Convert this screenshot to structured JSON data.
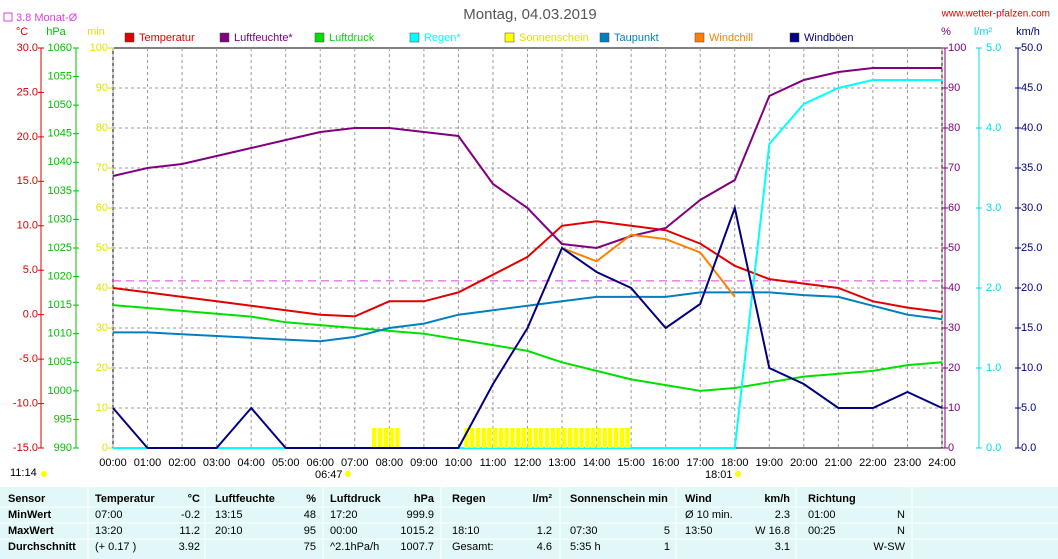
{
  "chart_data": {
    "type": "line",
    "title": "Montag, 04.03.2019",
    "site": "www.wetter-pfalzen.com",
    "reference": {
      "label": "3.8 Monat-Ø",
      "value": 3.8,
      "axis": 0,
      "color": "#e040e0"
    },
    "time": "11:14",
    "sunrise": "06:47",
    "sunset": "18:01",
    "axes": [
      {
        "unit": "°C",
        "color": "#e00000",
        "side": "left",
        "lim": [
          -15,
          30
        ],
        "ticks": [
          {
            "value": 30,
            "label": "30.0"
          },
          {
            "value": 25,
            "label": "25.0"
          },
          {
            "value": 20,
            "label": "20.0"
          },
          {
            "value": 15,
            "label": "15.0"
          },
          {
            "value": 10,
            "label": "10.0"
          },
          {
            "value": 5,
            "label": "5.0"
          },
          {
            "value": 0,
            "label": "0.0"
          },
          {
            "value": -5,
            "label": "-5.0"
          },
          {
            "value": -10,
            "label": "-10.0"
          },
          {
            "value": -15,
            "label": "-15.0"
          }
        ]
      },
      {
        "unit": "hPa",
        "color": "#00c000",
        "side": "left",
        "lim": [
          990,
          1060
        ],
        "ticks": [
          1060,
          1055,
          1050,
          1045,
          1040,
          1035,
          1030,
          1025,
          1020,
          1015,
          1010,
          1005,
          1000,
          995,
          990
        ]
      },
      {
        "unit": "min",
        "color": "#e0e000",
        "side": "left",
        "lim": [
          0,
          100
        ],
        "ticks": [
          100,
          90,
          80,
          70,
          60,
          50,
          40,
          30,
          20,
          10,
          0
        ],
        "grid": true
      },
      {
        "unit": "%",
        "color": "#800080",
        "side": "right",
        "lim": [
          0,
          100
        ],
        "ticks": [
          100,
          90,
          80,
          70,
          60,
          50,
          40,
          30,
          20,
          10,
          0
        ]
      },
      {
        "unit": "l/m²",
        "color": "#00e0e0",
        "side": "right",
        "lim": [
          0,
          5
        ],
        "ticks": [
          {
            "value": 5,
            "label": "5.0"
          },
          {
            "value": 4,
            "label": "4.0"
          },
          {
            "value": 3,
            "label": "3.0"
          },
          {
            "value": 2,
            "label": "2.0"
          },
          {
            "value": 1,
            "label": "1.0"
          },
          {
            "value": 0,
            "label": "0.0"
          }
        ]
      },
      {
        "unit": "km/h",
        "color": "#000080",
        "side": "right",
        "lim": [
          0,
          50
        ],
        "ticks": [
          {
            "value": 50,
            "label": "50.0"
          },
          {
            "value": 45,
            "label": "45.0"
          },
          {
            "value": 40,
            "label": "40.0"
          },
          {
            "value": 35,
            "label": "35.0"
          },
          {
            "value": 30,
            "label": "30.0"
          },
          {
            "value": 25,
            "label": "25.0"
          },
          {
            "value": 20,
            "label": "20.0"
          },
          {
            "value": 15,
            "label": "15.0"
          },
          {
            "value": 10,
            "label": "10.0"
          },
          {
            "value": 5,
            "label": "5.0"
          },
          {
            "value": 0,
            "label": "0.0"
          }
        ]
      }
    ],
    "xlim": [
      0,
      24
    ],
    "xticks": [
      {
        "value": 0,
        "label": "00:00"
      },
      {
        "value": 1,
        "label": "01:00"
      },
      {
        "value": 2,
        "label": "02:00"
      },
      {
        "value": 3,
        "label": "03:00"
      },
      {
        "value": 4,
        "label": "04:00"
      },
      {
        "value": 5,
        "label": "05:00"
      },
      {
        "value": 6,
        "label": "06:00"
      },
      {
        "value": 7,
        "label": "07:00"
      },
      {
        "value": 8,
        "label": "08:00"
      },
      {
        "value": 9,
        "label": "09:00"
      },
      {
        "value": 10,
        "label": "10:00"
      },
      {
        "value": 11,
        "label": "11:00"
      },
      {
        "value": 12,
        "label": "12:00"
      },
      {
        "value": 13,
        "label": "13:00"
      },
      {
        "value": 14,
        "label": "14:00"
      },
      {
        "value": 15,
        "label": "15:00"
      },
      {
        "value": 16,
        "label": "16:00"
      },
      {
        "value": 17,
        "label": "17:00"
      },
      {
        "value": 18,
        "label": "18:00"
      },
      {
        "value": 19,
        "label": "19:00"
      },
      {
        "value": 20,
        "label": "20:00"
      },
      {
        "value": 21,
        "label": "21:00"
      },
      {
        "value": 22,
        "label": "22:00"
      },
      {
        "value": 23,
        "label": "23:00"
      },
      {
        "value": 24,
        "label": "24:00"
      }
    ],
    "x": [
      0,
      1,
      2,
      3,
      4,
      5,
      6,
      7,
      8,
      9,
      10,
      11,
      12,
      13,
      14,
      15,
      16,
      17,
      18,
      19,
      20,
      21,
      22,
      23,
      24
    ],
    "series": [
      {
        "name": "Temperatur",
        "color": "#e00000",
        "axis": 0,
        "kind": "line",
        "values": [
          3.0,
          2.5,
          2.0,
          1.5,
          1.0,
          0.5,
          0.0,
          -0.2,
          1.5,
          1.5,
          2.5,
          4.5,
          6.5,
          10.0,
          10.5,
          10.0,
          9.5,
          8.0,
          5.5,
          4.0,
          3.5,
          3.0,
          1.5,
          0.8,
          0.3
        ]
      },
      {
        "name": "Luftfeuchte*",
        "color": "#800080",
        "axis": 3,
        "kind": "line",
        "values": [
          68,
          70,
          71,
          73,
          75,
          77,
          79,
          80,
          80,
          79,
          78,
          66,
          60,
          51,
          50,
          53,
          55,
          62,
          67,
          88,
          92,
          94,
          95,
          95,
          95
        ]
      },
      {
        "name": "Luftdruck",
        "color": "#00e000",
        "axis": 1,
        "kind": "line",
        "values": [
          1015,
          1014.5,
          1014,
          1013.5,
          1013,
          1012,
          1011.5,
          1011,
          1010.5,
          1010,
          1009,
          1008,
          1007,
          1005,
          1003.5,
          1002,
          1001,
          1000,
          1000.5,
          1001.5,
          1002.5,
          1003,
          1003.5,
          1004.5,
          1005
        ]
      },
      {
        "name": "Regen*",
        "color": "#00ffff",
        "axis": 4,
        "kind": "line",
        "values": [
          0,
          0,
          0,
          0,
          0,
          0,
          0,
          0,
          0,
          0,
          0,
          0,
          0,
          0,
          0,
          0,
          0,
          0,
          0,
          3.8,
          4.3,
          4.5,
          4.6,
          4.6,
          4.6
        ]
      },
      {
        "name": "Sonnenschein",
        "color": "#ffff00",
        "axis": 2,
        "kind": "bar",
        "x": [
          7.5,
          7.67,
          7.83,
          8.0,
          8.17,
          10.17,
          10.33,
          10.5,
          10.67,
          10.83,
          11,
          11.17,
          11.33,
          11.5,
          11.67,
          11.83,
          12,
          12.17,
          12.33,
          12.5,
          12.67,
          12.83,
          13,
          13.17,
          13.33,
          13.5,
          13.67,
          13.83,
          14,
          14.17,
          14.33,
          14.5,
          14.67,
          14.83
        ],
        "values": [
          5,
          5,
          5,
          5,
          5,
          5,
          5,
          5,
          5,
          5,
          5,
          5,
          5,
          5,
          5,
          5,
          5,
          5,
          5,
          5,
          5,
          5,
          5,
          5,
          5,
          5,
          5,
          5,
          5,
          5,
          5,
          5,
          5,
          5
        ]
      },
      {
        "name": "Taupunkt",
        "color": "#0080c0",
        "axis": 0,
        "kind": "line",
        "values": [
          -2.0,
          -2.0,
          -2.2,
          -2.4,
          -2.6,
          -2.8,
          -3.0,
          -2.5,
          -1.5,
          -1.0,
          0.0,
          0.5,
          1.0,
          1.5,
          2.0,
          2.0,
          2.0,
          2.5,
          2.5,
          2.5,
          2.2,
          2.0,
          1.0,
          0.0,
          -0.5
        ]
      },
      {
        "name": "Windchill",
        "color": "#ff8000",
        "axis": 0,
        "kind": "line",
        "values": [
          null,
          null,
          null,
          null,
          null,
          null,
          null,
          null,
          null,
          null,
          null,
          null,
          null,
          7.5,
          6.0,
          9.0,
          8.5,
          7.0,
          2.0,
          null,
          null,
          null,
          null,
          null,
          null
        ]
      },
      {
        "name": "Windböen",
        "color": "#000080",
        "axis": 5,
        "kind": "line",
        "values": [
          5,
          0,
          0,
          0,
          5,
          0,
          0,
          0,
          0,
          0,
          0,
          8,
          15,
          25,
          22,
          20,
          15,
          18,
          30,
          10,
          8,
          5,
          5,
          7,
          5
        ]
      }
    ]
  },
  "table": {
    "header": [
      "Sensor",
      "Temperatur",
      "°C",
      "Luftfeuchte",
      "%",
      "Luftdruck",
      "hPa",
      "Regen",
      "l/m²",
      "Sonnenschein min",
      null,
      "Wind",
      "km/h",
      "Richtung",
      null
    ],
    "rows": [
      [
        "MinWert",
        "07:00",
        "-0.2",
        "13:15",
        "48",
        "17:20",
        "999.9",
        null,
        null,
        null,
        null,
        "Ø 10 min.",
        "2.3",
        "01:00",
        "N"
      ],
      [
        "MaxWert",
        "13:20",
        "11.2",
        "20:10",
        "95",
        "00:00",
        "1015.2",
        "18:10",
        "1.2",
        "07:30",
        "5",
        "13:50",
        "W 16.8",
        "00:25",
        "N"
      ],
      [
        "Durchschnitt",
        "(+ 0.17 )",
        "3.92",
        null,
        "75",
        "^2.1hPa/h",
        "1007.7",
        "Gesamt:",
        "4.6",
        "5:35 h",
        "1",
        null,
        "3.1",
        null,
        "W-SW"
      ]
    ]
  }
}
